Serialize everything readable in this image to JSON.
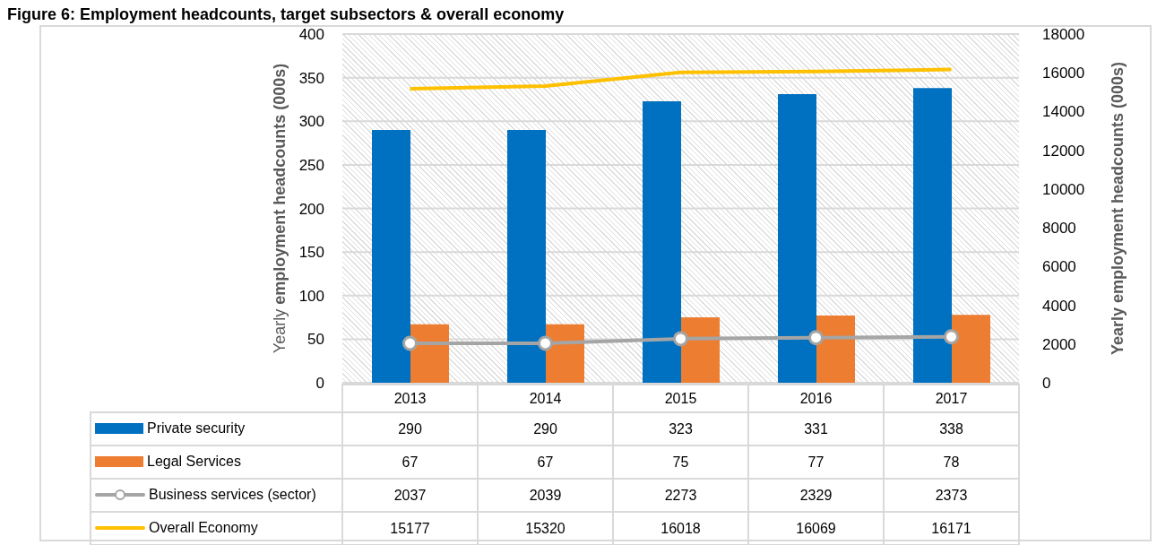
{
  "chart_data": {
    "type": "bar",
    "title": "Figure 6: Employment headcounts, target subsectors & overall economy",
    "ylabel": "Yearly employment headcounts (000s)",
    "y2label": "Yearly employment headcounts (000s)",
    "categories": [
      "2013",
      "2014",
      "2015",
      "2016",
      "2017"
    ],
    "series": [
      {
        "name": "Private security",
        "color": "#0070c0",
        "values": [
          290,
          290,
          323,
          331,
          338
        ]
      },
      {
        "name": "Legal Services",
        "color": "#ed7d31",
        "values": [
          67,
          67,
          75,
          77,
          78
        ]
      },
      {
        "name": "Business services (sector)",
        "type": "line",
        "axis": "y2",
        "marker": "circle",
        "color": "#a5a5a5",
        "values": [
          2037,
          2039,
          2273,
          2329,
          2373
        ]
      },
      {
        "name": "Overall Economy",
        "type": "line",
        "axis": "y2",
        "marker": "none",
        "color": "#ffc000",
        "values": [
          15177,
          15320,
          16018,
          16069,
          16171
        ]
      }
    ],
    "ylim": [
      0,
      400
    ],
    "yticks": [
      0,
      50,
      100,
      150,
      200,
      250,
      300,
      350,
      400
    ],
    "y2lim": [
      0,
      18000
    ],
    "y2ticks": [
      0,
      2000,
      4000,
      6000,
      8000,
      10000,
      12000,
      14000,
      16000,
      18000
    ],
    "grid": "y",
    "legend": "bottom",
    "data_labels": true
  }
}
